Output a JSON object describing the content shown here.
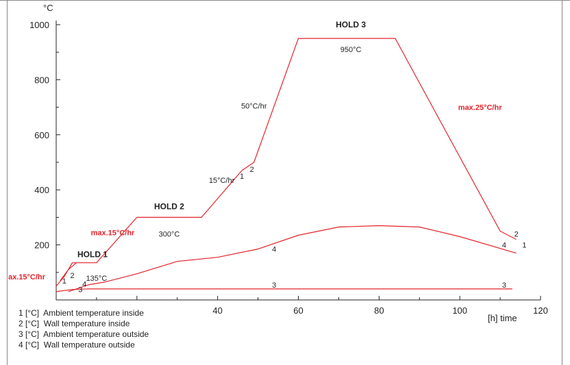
{
  "chart_data": {
    "type": "line",
    "y_unit": "°C",
    "x_unit": "[h] time",
    "xlim": [
      0,
      120
    ],
    "ylim": [
      0,
      1000
    ],
    "x_ticks": [
      "40",
      "60",
      "80",
      "100",
      "120"
    ],
    "y_ticks": [
      "200",
      "400",
      "600",
      "800",
      "1000"
    ],
    "grid": false,
    "series": [
      {
        "id": "1",
        "color": "#e2232a",
        "points": [
          [
            0,
            50
          ],
          [
            2,
            85
          ],
          [
            4,
            135
          ],
          [
            10,
            135
          ],
          [
            20,
            300
          ],
          [
            36,
            300
          ],
          [
            46,
            470
          ],
          [
            49,
            500
          ],
          [
            60,
            950
          ],
          [
            84,
            950
          ],
          [
            110,
            250
          ],
          [
            114,
            220
          ]
        ]
      },
      {
        "id": "2",
        "color": "#e2232a",
        "points": [
          [
            1,
            70
          ],
          [
            3,
            110
          ],
          [
            5,
            135
          ]
        ]
      },
      {
        "id": "3",
        "color": "#e2232a",
        "points": [
          [
            0,
            30
          ],
          [
            4,
            38
          ],
          [
            8,
            40
          ],
          [
            113,
            40
          ]
        ]
      },
      {
        "id": "4",
        "color": "#e2232a",
        "points": [
          [
            3,
            30
          ],
          [
            8,
            55
          ],
          [
            12,
            65
          ],
          [
            20,
            95
          ],
          [
            30,
            140
          ],
          [
            40,
            155
          ],
          [
            50,
            185
          ],
          [
            60,
            235
          ],
          [
            70,
            265
          ],
          [
            80,
            270
          ],
          [
            90,
            265
          ],
          [
            100,
            230
          ],
          [
            114,
            170
          ]
        ]
      }
    ],
    "series_labels": [
      {
        "text": "1",
        "x": 2,
        "y": 60
      },
      {
        "text": "2",
        "x": 4,
        "y": 80
      },
      {
        "text": "3",
        "x": 6,
        "y": 28
      },
      {
        "text": "4",
        "x": 7,
        "y": 48
      },
      {
        "text": "1",
        "x": 46,
        "y": 440
      },
      {
        "text": "2",
        "x": 48.5,
        "y": 465
      },
      {
        "text": "4",
        "x": 54,
        "y": 175
      },
      {
        "text": "3",
        "x": 54,
        "y": 45
      },
      {
        "text": "3",
        "x": 111,
        "y": 45
      },
      {
        "text": "4",
        "x": 111,
        "y": 190
      },
      {
        "text": "2",
        "x": 114,
        "y": 230
      },
      {
        "text": "1",
        "x": 116,
        "y": 190
      }
    ],
    "annotations": [
      {
        "text": "HOLD 1",
        "x": 9,
        "y": 155,
        "style": "black-bold"
      },
      {
        "text": "135°C",
        "x": 10,
        "y": 70,
        "style": "black"
      },
      {
        "text": "HOLD 2",
        "x": 28,
        "y": 330,
        "style": "black-bold"
      },
      {
        "text": "300°C",
        "x": 28,
        "y": 230,
        "style": "black"
      },
      {
        "text": "HOLD 3",
        "x": 73,
        "y": 990,
        "style": "black-bold"
      },
      {
        "text": "950°C",
        "x": 73,
        "y": 900,
        "style": "black"
      },
      {
        "text": "max.15°C/hr",
        "x": 14,
        "y": 235,
        "style": "red"
      },
      {
        "text": "15°C/hr",
        "x": 41,
        "y": 425,
        "style": "black"
      },
      {
        "text": "50°C/hr",
        "x": 49,
        "y": 695,
        "style": "black"
      },
      {
        "text": "max.25°C/hr",
        "x": 105,
        "y": 690,
        "style": "red"
      },
      {
        "text": "ax.15°C/hr",
        "x": 0,
        "y": 75,
        "style": "red-left"
      }
    ],
    "legend": {
      "placement": "bottom-left",
      "entries": [
        "1 [°C]  Ambient temperature inside",
        "2 [°C]  Wall temperature inside",
        "3 [°C]  Ambient temperature outside",
        "4 [°C]  Wall temperature outside"
      ]
    }
  }
}
